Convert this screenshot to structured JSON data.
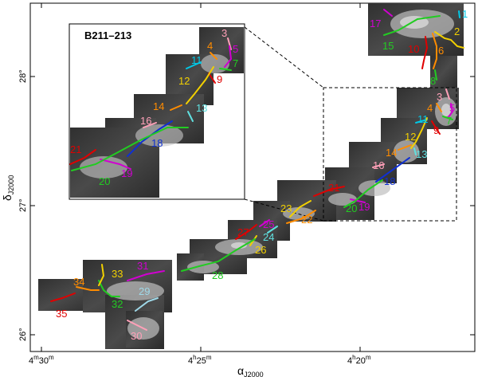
{
  "figure": {
    "inset_title": "B211–213",
    "x_axis_label": "α",
    "x_axis_subscript": "J2000",
    "y_axis_label": "δ",
    "y_axis_subscript": "J2000",
    "x_ticks": [
      {
        "h": "4",
        "m": "30",
        "unit": "m"
      },
      {
        "h": "4",
        "m": "25",
        "unit": "m"
      },
      {
        "h": "4",
        "m": "20",
        "unit": "m"
      }
    ],
    "y_ticks": [
      "26°",
      "27°",
      "28°"
    ]
  },
  "filaments": [
    {
      "id": "1",
      "color": "#00c8e6"
    },
    {
      "id": "2",
      "color": "#f2d000"
    },
    {
      "id": "3",
      "color": "#ffa0b8"
    },
    {
      "id": "4",
      "color": "#ff8c00"
    },
    {
      "id": "5",
      "color": "#d000d0"
    },
    {
      "id": "6",
      "color": "#ff8c00"
    },
    {
      "id": "7",
      "color": "#22cc22"
    },
    {
      "id": "8",
      "color": "#22cc22"
    },
    {
      "id": "9",
      "color": "#e00000"
    },
    {
      "id": "10",
      "color": "#e00000"
    },
    {
      "id": "11",
      "color": "#00c8e6"
    },
    {
      "id": "12",
      "color": "#f2d000"
    },
    {
      "id": "13",
      "color": "#60e0e0"
    },
    {
      "id": "14",
      "color": "#ff8c00"
    },
    {
      "id": "15",
      "color": "#22cc22"
    },
    {
      "id": "16",
      "color": "#ffa0b8"
    },
    {
      "id": "17",
      "color": "#d000d0"
    },
    {
      "id": "18",
      "color": "#1030d0"
    },
    {
      "id": "19",
      "color": "#d000d0"
    },
    {
      "id": "20",
      "color": "#22cc22"
    },
    {
      "id": "21",
      "color": "#e00000"
    },
    {
      "id": "22",
      "color": "#ff8c00"
    },
    {
      "id": "23",
      "color": "#f2d000"
    },
    {
      "id": "24",
      "color": "#60e0e0"
    },
    {
      "id": "25",
      "color": "#d000d0"
    },
    {
      "id": "26",
      "color": "#f2d000"
    },
    {
      "id": "27",
      "color": "#e00000"
    },
    {
      "id": "28",
      "color": "#22cc22"
    },
    {
      "id": "29",
      "color": "#9fd8e8"
    },
    {
      "id": "30",
      "color": "#ffa0b8"
    },
    {
      "id": "31",
      "color": "#d000d0"
    },
    {
      "id": "32",
      "color": "#22cc22"
    },
    {
      "id": "33",
      "color": "#f2d000"
    },
    {
      "id": "34",
      "color": "#ff8c00"
    },
    {
      "id": "35",
      "color": "#e00000"
    }
  ],
  "inset_filaments": [
    "3",
    "4",
    "5",
    "7",
    "9",
    "11",
    "12",
    "13",
    "14",
    "16",
    "18",
    "19",
    "20",
    "21"
  ]
}
